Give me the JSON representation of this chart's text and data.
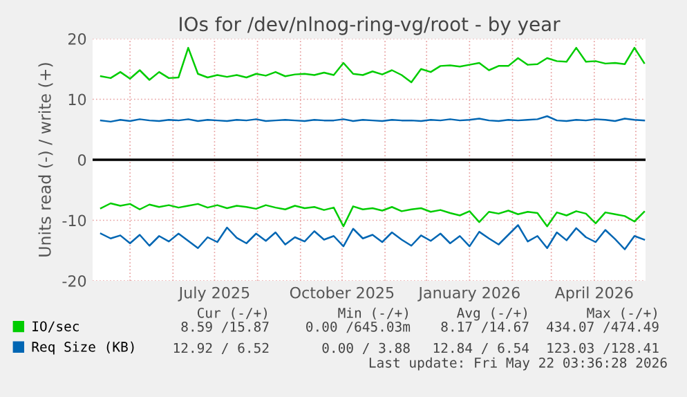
{
  "chart_data": {
    "type": "line",
    "title": "IOs for /dev/nlnog-ring-vg/root - by year",
    "ylabel": "Units read (-) / write (+)",
    "x": [
      "2025-04-10",
      "2025-04-17",
      "2025-04-24",
      "2025-05-01",
      "2025-05-08",
      "2025-05-15",
      "2025-05-22",
      "2025-05-29",
      "2025-06-05",
      "2025-06-12",
      "2025-06-19",
      "2025-06-26",
      "2025-07-03",
      "2025-07-10",
      "2025-07-17",
      "2025-07-24",
      "2025-07-31",
      "2025-08-07",
      "2025-08-14",
      "2025-08-21",
      "2025-08-28",
      "2025-09-04",
      "2025-09-11",
      "2025-09-18",
      "2025-09-25",
      "2025-10-02",
      "2025-10-09",
      "2025-10-16",
      "2025-10-23",
      "2025-10-30",
      "2025-11-06",
      "2025-11-13",
      "2025-11-20",
      "2025-11-27",
      "2025-12-04",
      "2025-12-11",
      "2025-12-18",
      "2025-12-25",
      "2026-01-01",
      "2026-01-08",
      "2026-01-15",
      "2026-01-22",
      "2026-01-29",
      "2026-02-05",
      "2026-02-12",
      "2026-02-19",
      "2026-02-26",
      "2026-03-05",
      "2026-03-12",
      "2026-03-19",
      "2026-03-26",
      "2026-04-02",
      "2026-04-09",
      "2026-04-16",
      "2026-04-23",
      "2026-04-30",
      "2026-05-07"
    ],
    "series": [
      {
        "name": "IO/sec",
        "color": "#00cc00",
        "values": [
          13.8,
          13.5,
          14.5,
          13.4,
          14.8,
          13.2,
          14.5,
          13.5,
          13.6,
          18.5,
          14.2,
          13.6,
          14.0,
          13.7,
          14.0,
          13.6,
          14.2,
          13.9,
          14.5,
          13.8,
          14.1,
          14.2,
          14.0,
          14.4,
          14.0,
          16.0,
          14.2,
          14.0,
          14.6,
          14.1,
          14.8,
          14.0,
          12.8,
          15.0,
          14.5,
          15.5,
          15.6,
          15.4,
          15.7,
          16.0,
          14.8,
          15.5,
          15.5,
          16.8,
          15.7,
          15.8,
          16.8,
          16.3,
          16.2,
          18.5,
          16.2,
          16.3,
          15.9,
          16.0,
          15.8,
          18.5,
          16.0
        ]
      },
      {
        "color": "#00cc00",
        "values": [
          -8.0,
          -7.2,
          -7.6,
          -7.3,
          -8.2,
          -7.4,
          -7.8,
          -7.5,
          -7.9,
          -7.6,
          -7.3,
          -7.9,
          -7.5,
          -8.0,
          -7.6,
          -7.8,
          -8.1,
          -7.5,
          -7.9,
          -8.2,
          -7.6,
          -8.0,
          -7.8,
          -8.3,
          -7.9,
          -11.0,
          -7.7,
          -8.2,
          -8.0,
          -8.4,
          -7.8,
          -8.5,
          -8.2,
          -8.0,
          -8.6,
          -8.3,
          -8.8,
          -9.2,
          -8.5,
          -10.3,
          -8.6,
          -8.9,
          -8.4,
          -9.0,
          -8.6,
          -8.8,
          -11.0,
          -8.7,
          -9.2,
          -8.5,
          -8.9,
          -10.5,
          -8.7,
          -9.0,
          -9.3,
          -10.2,
          -8.6
        ]
      },
      {
        "name": "Req Size (KB)",
        "color": "#0066b3",
        "values": [
          6.5,
          6.3,
          6.6,
          6.4,
          6.7,
          6.5,
          6.4,
          6.6,
          6.5,
          6.7,
          6.4,
          6.6,
          6.5,
          6.4,
          6.6,
          6.5,
          6.7,
          6.4,
          6.5,
          6.6,
          6.5,
          6.4,
          6.6,
          6.5,
          6.5,
          6.7,
          6.4,
          6.6,
          6.5,
          6.4,
          6.6,
          6.5,
          6.5,
          6.4,
          6.6,
          6.5,
          6.7,
          6.5,
          6.6,
          6.8,
          6.5,
          6.4,
          6.6,
          6.5,
          6.6,
          6.7,
          7.2,
          6.5,
          6.4,
          6.6,
          6.5,
          6.7,
          6.6,
          6.4,
          6.8,
          6.6,
          6.5
        ]
      },
      {
        "color": "#0066b3",
        "values": [
          -12.2,
          -13.0,
          -12.5,
          -13.8,
          -12.4,
          -14.2,
          -12.6,
          -13.5,
          -12.2,
          -13.4,
          -14.6,
          -12.8,
          -13.6,
          -11.2,
          -12.9,
          -13.8,
          -12.2,
          -13.4,
          -12.0,
          -14.0,
          -12.8,
          -13.5,
          -11.8,
          -13.2,
          -12.6,
          -14.3,
          -11.4,
          -13.0,
          -12.4,
          -13.6,
          -12.0,
          -13.2,
          -14.2,
          -12.5,
          -13.4,
          -12.2,
          -13.8,
          -12.6,
          -14.3,
          -11.9,
          -13.0,
          -14.0,
          -12.4,
          -10.8,
          -13.5,
          -12.6,
          -14.6,
          -12.0,
          -13.3,
          -11.3,
          -12.8,
          -13.6,
          -11.6,
          -13.1,
          -14.8,
          -12.6,
          -13.2
        ]
      }
    ],
    "xlim": [
      "2025-04-04",
      "2026-05-08"
    ],
    "xticks": [
      {
        "value": "2025-05-01",
        "label": null
      },
      {
        "value": "2025-06-01",
        "label": null
      },
      {
        "value": "2025-07-01",
        "label": "July 2025"
      },
      {
        "value": "2025-08-01",
        "label": null
      },
      {
        "value": "2025-09-01",
        "label": null
      },
      {
        "value": "2025-10-01",
        "label": "October 2025"
      },
      {
        "value": "2025-11-01",
        "label": null
      },
      {
        "value": "2025-12-01",
        "label": null
      },
      {
        "value": "2026-01-01",
        "label": "January 2026"
      },
      {
        "value": "2026-02-01",
        "label": null
      },
      {
        "value": "2026-03-01",
        "label": null
      },
      {
        "value": "2026-04-01",
        "label": "April 2026"
      },
      {
        "value": "2026-05-01",
        "label": null
      }
    ],
    "ylim": [
      -20,
      20
    ],
    "yticks": [
      -20,
      -10,
      0,
      10,
      20
    ],
    "ref_lines": [
      {
        "axis": "y",
        "value": 0,
        "color": "#000000"
      }
    ],
    "grid": true,
    "legend": "bottom",
    "annotations": [
      "Cur (-/+)",
      "Min (-/+)",
      "Avg (-/+)",
      "Max (-/+)",
      "8.59 /15.87",
      "0.00 /645.03m",
      "8.17 /14.67",
      "434.07 /474.49",
      "12.92 / 6.52",
      "0.00 / 3.88",
      "12.84 / 6.54",
      "123.03 /128.41",
      "Last update: Fri May 22 03:36:28 2026"
    ]
  }
}
